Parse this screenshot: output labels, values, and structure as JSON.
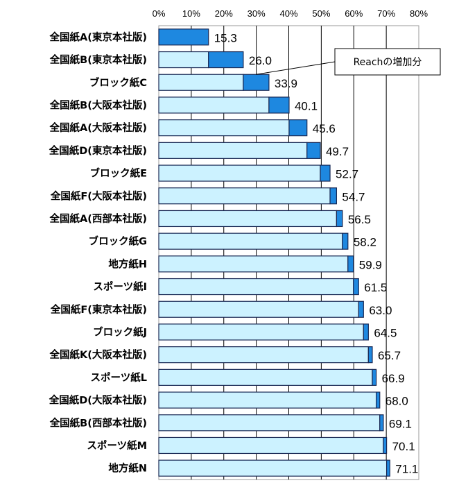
{
  "chart_data": {
    "type": "bar",
    "orientation": "horizontal",
    "stacked": true,
    "categories": [
      "全国紙A(東京本社版)",
      "全国紙B(東京本社版)",
      "ブロック紙C",
      "全国紙B(大阪本社版)",
      "全国紙A(大阪本社版)",
      "全国紙D(東京本社版)",
      "ブロック紙E",
      "全国紙F(大阪本社版)",
      "全国紙A(西部本社版)",
      "ブロック紙G",
      "地方紙H",
      "スポーツ紙I",
      "全国紙F(東京本社版)",
      "ブロック紙J",
      "全国紙K(大阪本社版)",
      "スポーツ紙L",
      "全国紙D(大阪本社版)",
      "全国紙B(西部本社版)",
      "スポーツ紙M",
      "地方紙N"
    ],
    "series": [
      {
        "color": "#ccf2ff",
        "values": [
          0,
          15.3,
          26.0,
          33.9,
          40.1,
          45.6,
          49.7,
          52.7,
          54.7,
          56.5,
          58.2,
          59.9,
          61.5,
          63.0,
          64.5,
          65.7,
          66.9,
          68.0,
          69.1,
          70.1
        ]
      },
      {
        "name": "Reachの増加分",
        "color": "#1e88e0",
        "values": [
          15.3,
          10.7,
          7.9,
          6.2,
          5.5,
          4.1,
          3.0,
          2.0,
          1.8,
          1.7,
          1.7,
          1.6,
          1.5,
          1.5,
          1.2,
          1.2,
          1.1,
          1.1,
          1.0,
          1.0
        ]
      }
    ],
    "data_labels": [
      "15.3",
      "26.0",
      "33.9",
      "40.1",
      "45.6",
      "49.7",
      "52.7",
      "54.7",
      "56.5",
      "58.2",
      "59.9",
      "61.5",
      "63.0",
      "64.5",
      "65.7",
      "66.9",
      "68.0",
      "69.1",
      "70.1",
      "71.1"
    ],
    "x_ticks": [
      "0%",
      "10%",
      "20%",
      "30%",
      "40%",
      "50%",
      "60%",
      "70%",
      "80%"
    ],
    "xlim": [
      0,
      80
    ],
    "grid": true,
    "annotation": {
      "text": "Reachの増加分",
      "points_to_category": "ブロック紙C"
    }
  }
}
